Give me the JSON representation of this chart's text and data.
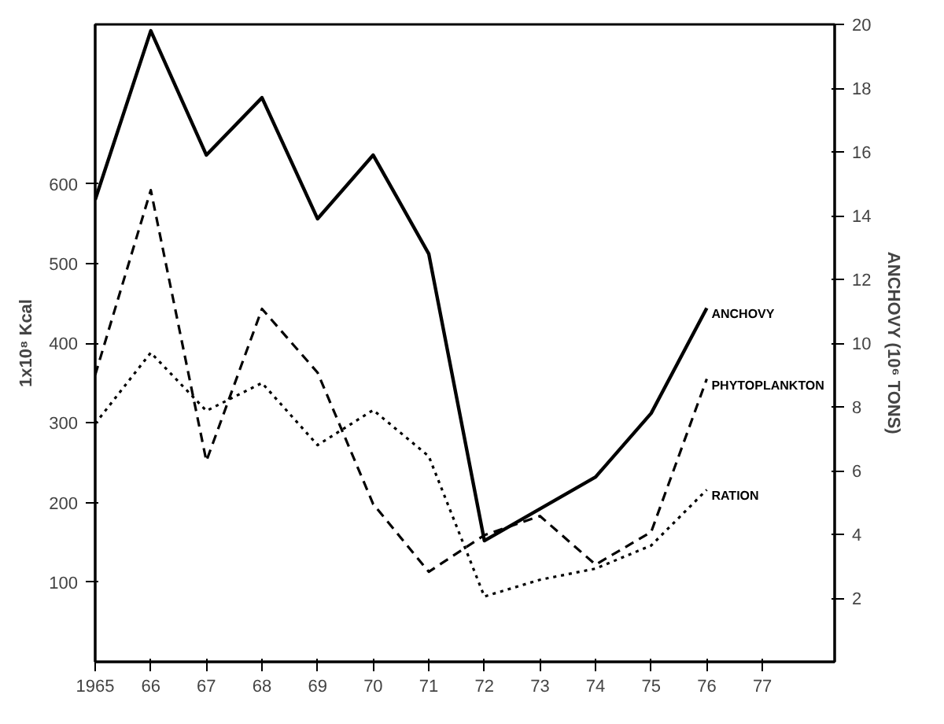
{
  "chart_data": {
    "type": "line",
    "ylabel": "1x10⁸ Kcal",
    "y2label": "ANCHOVY (10⁶ TONS)",
    "x": [
      1965,
      1966,
      1967,
      1968,
      1969,
      1970,
      1971,
      1972,
      1973,
      1974,
      1975,
      1976
    ],
    "xlim": [
      1965,
      1978.3
    ],
    "xticks": [
      {
        "value": 1965,
        "label": "1965"
      },
      {
        "value": 1966,
        "label": "66"
      },
      {
        "value": 1967,
        "label": "67"
      },
      {
        "value": 1968,
        "label": "68"
      },
      {
        "value": 1969,
        "label": "69"
      },
      {
        "value": 1970,
        "label": "70"
      },
      {
        "value": 1971,
        "label": "71"
      },
      {
        "value": 1972,
        "label": "72"
      },
      {
        "value": 1973,
        "label": "73"
      },
      {
        "value": 1974,
        "label": "74"
      },
      {
        "value": 1975,
        "label": "75"
      },
      {
        "value": 1976,
        "label": "76"
      },
      {
        "value": 1977,
        "label": "77"
      }
    ],
    "ylim": [
      0,
      800
    ],
    "yticks": [
      100,
      200,
      300,
      400,
      500,
      600
    ],
    "y2lim": [
      0,
      20
    ],
    "y2ticks": [
      2,
      4,
      6,
      8,
      10,
      12,
      14,
      16,
      18,
      20
    ],
    "series": [
      {
        "name": "ANCHOVY",
        "color": "#000000",
        "line_style": "solid",
        "axis": "y2",
        "values": [
          14.5,
          19.8,
          15.9,
          17.7,
          13.9,
          15.9,
          12.8,
          3.8,
          4.8,
          5.8,
          7.8,
          11.1
        ]
      },
      {
        "name": "PHYTOPLANKTON",
        "color": "#000000",
        "line_style": "dashed",
        "values": [
          360,
          592,
          252,
          443,
          363,
          198,
          113,
          159,
          183,
          122,
          163,
          355
        ]
      },
      {
        "name": "RATION",
        "color": "#000000",
        "line_style": "dotted",
        "values": [
          299,
          388,
          315,
          350,
          272,
          316,
          258,
          82,
          103,
          117,
          146,
          216
        ]
      }
    ]
  }
}
